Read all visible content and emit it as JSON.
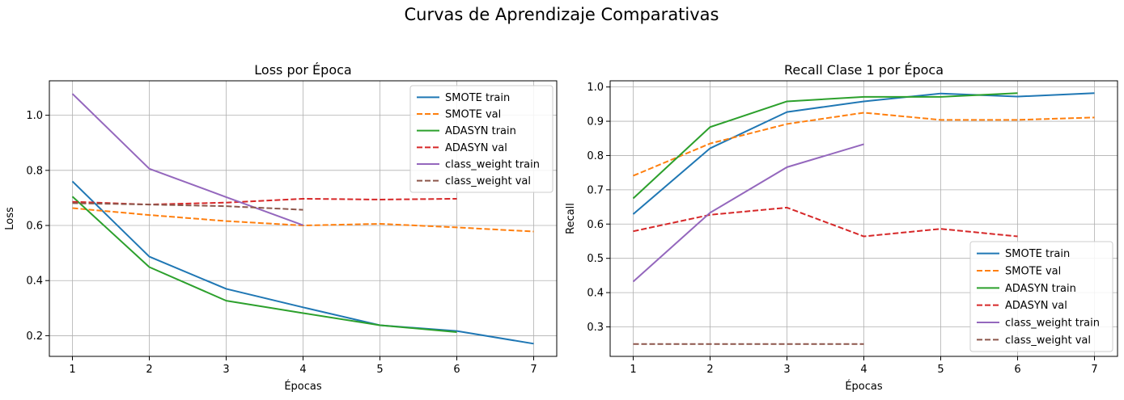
{
  "figure": {
    "suptitle": "Curvas de Aprendizaje Comparativas"
  },
  "chart_data": [
    {
      "type": "line",
      "title": "Loss por Época",
      "xlabel": "Épocas",
      "ylabel": "Loss",
      "xlim": [
        0.7,
        7.3
      ],
      "ylim": [
        0.125,
        1.125
      ],
      "xticks": [
        1,
        2,
        3,
        4,
        5,
        6,
        7
      ],
      "yticks": [
        0.2,
        0.4,
        0.6,
        0.8,
        1.0
      ],
      "ytick_labels": [
        "0.2",
        "0.4",
        "0.6",
        "0.8",
        "1.0"
      ],
      "grid": true,
      "legend_position": "upper-right",
      "series": [
        {
          "name": "SMOTE train",
          "color": "#1f77b4",
          "dash": "solid",
          "x": [
            1,
            2,
            3,
            4,
            5,
            6,
            7
          ],
          "y": [
            0.76,
            0.487,
            0.37,
            0.303,
            0.238,
            0.217,
            0.171
          ]
        },
        {
          "name": "SMOTE val",
          "color": "#ff7f0e",
          "dash": "dashed",
          "x": [
            1,
            2,
            3,
            4,
            5,
            6,
            7
          ],
          "y": [
            0.663,
            0.638,
            0.616,
            0.6,
            0.606,
            0.593,
            0.578
          ]
        },
        {
          "name": "ADASYN train",
          "color": "#2ca02c",
          "dash": "solid",
          "x": [
            1,
            2,
            3,
            4,
            5,
            6
          ],
          "y": [
            0.705,
            0.449,
            0.327,
            0.282,
            0.238,
            0.213
          ]
        },
        {
          "name": "ADASYN val",
          "color": "#d62728",
          "dash": "dashed",
          "x": [
            1,
            2,
            3,
            4,
            5,
            6
          ],
          "y": [
            0.686,
            0.676,
            0.683,
            0.697,
            0.694,
            0.697
          ]
        },
        {
          "name": "class_weight train",
          "color": "#9467bd",
          "dash": "solid",
          "x": [
            1,
            2,
            3,
            4
          ],
          "y": [
            1.078,
            0.806,
            0.703,
            0.601
          ]
        },
        {
          "name": "class_weight val",
          "color": "#8c564b",
          "dash": "dashed",
          "x": [
            1,
            2,
            3,
            4
          ],
          "y": [
            0.681,
            0.676,
            0.67,
            0.657
          ]
        }
      ]
    },
    {
      "type": "line",
      "title": "Recall Clase 1 por Época",
      "xlabel": "Épocas",
      "ylabel": "Recall",
      "xlim": [
        0.7,
        7.3
      ],
      "ylim": [
        0.214,
        1.018
      ],
      "xticks": [
        1,
        2,
        3,
        4,
        5,
        6,
        7
      ],
      "yticks": [
        0.3,
        0.4,
        0.5,
        0.6,
        0.7,
        0.8,
        0.9,
        1.0
      ],
      "ytick_labels": [
        "0.3",
        "0.4",
        "0.5",
        "0.6",
        "0.7",
        "0.8",
        "0.9",
        "1.0"
      ],
      "grid": true,
      "legend_position": "lower-right",
      "series": [
        {
          "name": "SMOTE train",
          "color": "#1f77b4",
          "dash": "solid",
          "x": [
            1,
            2,
            3,
            4,
            5,
            6,
            7
          ],
          "y": [
            0.629,
            0.821,
            0.927,
            0.958,
            0.981,
            0.972,
            0.982
          ]
        },
        {
          "name": "SMOTE val",
          "color": "#ff7f0e",
          "dash": "dashed",
          "x": [
            1,
            2,
            3,
            4,
            5,
            6,
            7
          ],
          "y": [
            0.741,
            0.835,
            0.892,
            0.925,
            0.904,
            0.904,
            0.911
          ]
        },
        {
          "name": "ADASYN train",
          "color": "#2ca02c",
          "dash": "solid",
          "x": [
            1,
            2,
            3,
            4,
            5,
            6
          ],
          "y": [
            0.675,
            0.883,
            0.958,
            0.971,
            0.971,
            0.982
          ]
        },
        {
          "name": "ADASYN val",
          "color": "#d62728",
          "dash": "dashed",
          "x": [
            1,
            2,
            3,
            4,
            5,
            6
          ],
          "y": [
            0.579,
            0.627,
            0.648,
            0.564,
            0.586,
            0.564
          ]
        },
        {
          "name": "class_weight train",
          "color": "#9467bd",
          "dash": "solid",
          "x": [
            1,
            2,
            3,
            4
          ],
          "y": [
            0.432,
            0.633,
            0.766,
            0.833
          ]
        },
        {
          "name": "class_weight val",
          "color": "#8c564b",
          "dash": "dashed",
          "x": [
            1,
            2,
            3,
            4
          ],
          "y": [
            0.25,
            0.25,
            0.25,
            0.25
          ]
        }
      ]
    }
  ]
}
